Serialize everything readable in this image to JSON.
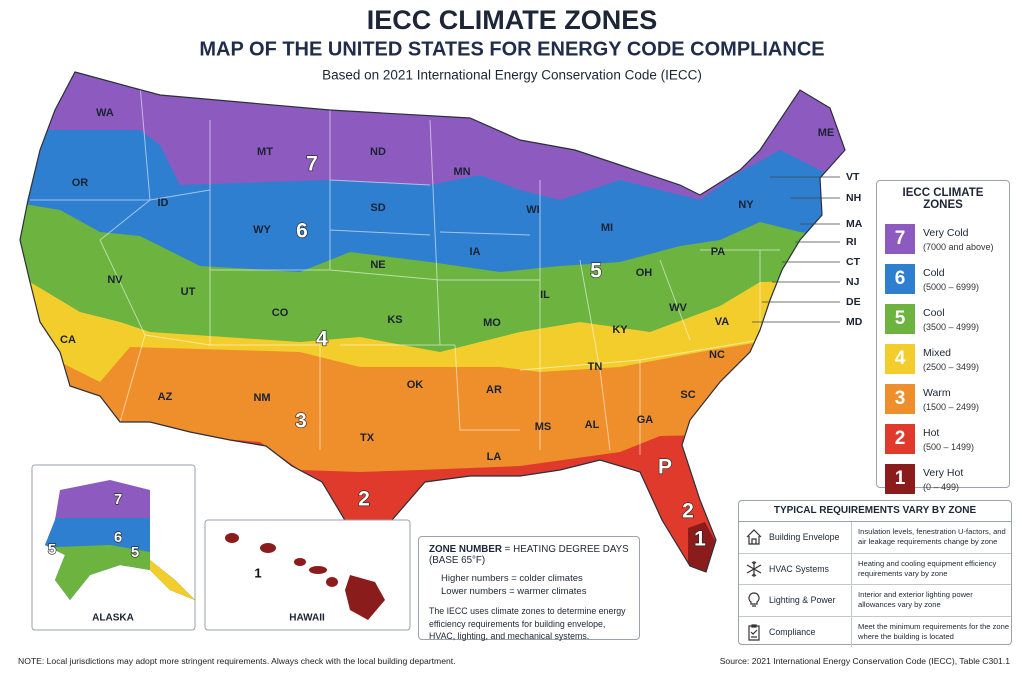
{
  "header": {
    "title": "IECC CLIMATE ZONES",
    "subtitle": "MAP OF THE UNITED STATES FOR ENERGY CODE COMPLIANCE",
    "basis": "Based on 2021 International Energy Conservation Code (IECC)"
  },
  "map": {
    "state_labels": [
      "WA",
      "OR",
      "ID",
      "MT",
      "WY",
      "NV",
      "UT",
      "CO",
      "CA",
      "AZ",
      "NM",
      "ND",
      "SD",
      "NE",
      "KS",
      "OK",
      "TX",
      "MN",
      "IA",
      "MO",
      "AR",
      "LA",
      "WI",
      "IL",
      "MS",
      "MI",
      "OH",
      "KY",
      "TN",
      "AL",
      "GA",
      "WV",
      "VA",
      "NC",
      "SC",
      "PA",
      "NY",
      "ME"
    ],
    "zone_labels": [
      "7",
      "6",
      "5",
      "4",
      "3",
      "2",
      "2",
      "1",
      "P"
    ],
    "east_labels": [
      "VT",
      "NH",
      "MA",
      "RI",
      "CT",
      "NJ",
      "DE",
      "MD"
    ]
  },
  "insets": {
    "alaska": {
      "title": "ALASKA",
      "zone_labels": [
        "7",
        "6",
        "5",
        "5"
      ]
    },
    "hawaii": {
      "title": "HAWAII",
      "zone_labels": [
        "1"
      ]
    }
  },
  "legend": {
    "title": "IECC CLIMATE ZONES",
    "items": [
      {
        "zone": "7",
        "name": "Very Cold",
        "range": "(7000 and above)",
        "color": "#8d5bbf"
      },
      {
        "zone": "6",
        "name": "Cold",
        "range": "(5000 – 6999)",
        "color": "#2f7fd1"
      },
      {
        "zone": "5",
        "name": "Cool",
        "range": "(3500 – 4999)",
        "color": "#6cb33f"
      },
      {
        "zone": "4",
        "name": "Mixed",
        "range": "(2500 – 3499)",
        "color": "#f3cd2c"
      },
      {
        "zone": "3",
        "name": "Warm",
        "range": "(1500 – 2499)",
        "color": "#ef8f2b"
      },
      {
        "zone": "2",
        "name": "Hot",
        "range": "(500 – 1499)",
        "color": "#df3a2c"
      },
      {
        "zone": "1",
        "name": "Very Hot",
        "range": "(0 – 499)",
        "color": "#8b1c1c"
      }
    ]
  },
  "zone_note": {
    "heading_bold": "ZONE NUMBER",
    "heading_rest": "= HEATING DEGREE DAYS (BASE 65°F)",
    "higher": "Higher numbers = colder climates",
    "lower": "Lower numbers = warmer climates",
    "body": "The IECC uses climate zones to determine energy efficiency requirements for building envelope, HVAC, lighting, and mechanical systems."
  },
  "requirements": {
    "title": "TYPICAL REQUIREMENTS VARY BY ZONE",
    "rows": [
      {
        "name": "Building Envelope",
        "text": "Insulation levels, fenestration U-factors, and air leakage requirements change by zone"
      },
      {
        "name": "HVAC Systems",
        "text": "Heating and cooling equipment efficiency requirements vary by zone"
      },
      {
        "name": "Lighting & Power",
        "text": "Interior and exterior lighting power allowances vary by zone"
      },
      {
        "name": "Compliance",
        "text": "Meet the minimum requirements for the zone where the building is located"
      }
    ]
  },
  "footer": {
    "note": "NOTE: Local jurisdictions may adopt more stringent requirements. Always check with the local building department.",
    "source": "Source: 2021 International Energy Conservation Code (IECC), Table C301.1"
  }
}
